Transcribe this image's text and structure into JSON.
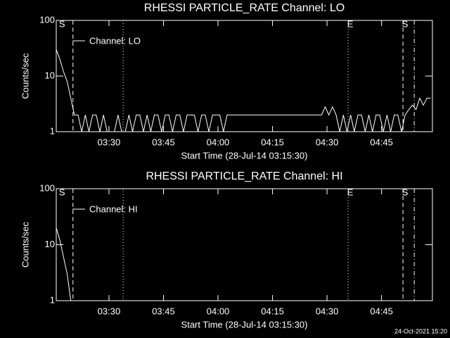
{
  "chart_data": [
    {
      "type": "line",
      "title": "RHESSI PARTICLE_RATE Channel: LO",
      "xlabel": "Start Time (28-Jul-14 03:15:30)",
      "ylabel": "Counts/sec",
      "log_y": true,
      "xlim": [
        0,
        103.5
      ],
      "ylim": [
        1,
        100
      ],
      "yticks": [
        1,
        10,
        100
      ],
      "xticks": [
        {
          "value": 14.5,
          "label": "03:30"
        },
        {
          "value": 29.5,
          "label": "03:45"
        },
        {
          "value": 44.5,
          "label": "04:00"
        },
        {
          "value": 59.5,
          "label": "04:15"
        },
        {
          "value": 74.5,
          "label": "04:30"
        },
        {
          "value": 89.5,
          "label": "04:45"
        }
      ],
      "series": [
        {
          "name": "Channel: LO",
          "color": "#ffffff",
          "x": [
            0,
            1,
            2,
            3,
            4,
            5,
            6,
            7,
            8,
            9,
            10,
            11,
            12,
            13,
            14,
            15,
            16,
            17,
            18,
            19,
            20,
            21,
            22,
            23,
            24,
            25,
            26,
            27,
            28,
            29,
            30,
            31,
            32,
            33,
            34,
            35,
            36,
            37,
            38,
            39,
            40,
            41,
            42,
            43,
            44,
            45,
            46,
            47,
            48,
            49,
            50,
            51,
            52,
            53,
            54,
            55,
            56,
            57,
            58,
            59,
            60,
            61,
            62,
            63,
            64,
            65,
            66,
            67,
            68,
            69,
            70,
            71,
            72,
            73,
            74,
            75,
            76,
            77,
            78,
            79,
            80,
            81,
            82,
            83,
            84,
            85,
            86,
            87,
            88,
            89,
            90,
            91,
            92,
            93,
            94,
            95,
            96,
            97,
            98,
            99,
            100,
            101,
            102,
            103
          ],
          "values": [
            30,
            20,
            12,
            8,
            4,
            2,
            2,
            1,
            2,
            1,
            2,
            2,
            1,
            2,
            1,
            1,
            1,
            2,
            1,
            1,
            2,
            1,
            2,
            2,
            1,
            2,
            1,
            2,
            2,
            1,
            2,
            2,
            1,
            2,
            2,
            1,
            2,
            2,
            2,
            1,
            2,
            2,
            1,
            2,
            2,
            2,
            1,
            2,
            2,
            2,
            2,
            2,
            2,
            2,
            2,
            2,
            2,
            2,
            2,
            2,
            2,
            2,
            2,
            2,
            2,
            2,
            2,
            2,
            2,
            2,
            2,
            2,
            2,
            2,
            2.8,
            2,
            2.8,
            2,
            1,
            2,
            1,
            2,
            1,
            2,
            2,
            1,
            2,
            1,
            2,
            2,
            1,
            2,
            1,
            2,
            2,
            1,
            2,
            2.5,
            3,
            2.5,
            4,
            3,
            4,
            4
          ]
        }
      ],
      "vlines": [
        {
          "x": 4.6,
          "style": "dashed"
        },
        {
          "x": 18.4,
          "style": "dotted"
        },
        {
          "x": 80.3,
          "style": "dotted"
        },
        {
          "x": 95.4,
          "style": "dashed"
        },
        {
          "x": 98.5,
          "style": "dashdot"
        }
      ],
      "annotations": [
        {
          "text": "S",
          "x": 1
        },
        {
          "text": "E",
          "x": 80.3
        },
        {
          "text": "S",
          "x": 95.4
        }
      ]
    },
    {
      "type": "line",
      "title": "RHESSI PARTICLE_RATE Channel: HI",
      "xlabel": "Start Time (28-Jul-14 03:15:30)",
      "ylabel": "Counts/sec",
      "log_y": true,
      "xlim": [
        0,
        103.5
      ],
      "ylim": [
        1,
        100
      ],
      "yticks": [
        1,
        10,
        100
      ],
      "xticks": [
        {
          "value": 14.5,
          "label": "03:30"
        },
        {
          "value": 29.5,
          "label": "03:45"
        },
        {
          "value": 44.5,
          "label": "04:00"
        },
        {
          "value": 59.5,
          "label": "04:15"
        },
        {
          "value": 74.5,
          "label": "04:30"
        },
        {
          "value": 89.5,
          "label": "04:45"
        }
      ],
      "series": [
        {
          "name": "Channel: HI",
          "color": "#ffffff",
          "x": [
            0,
            1,
            2,
            3,
            4
          ],
          "values": [
            20,
            12,
            6,
            3,
            1
          ]
        }
      ],
      "vlines": [
        {
          "x": 4.6,
          "style": "dashed"
        },
        {
          "x": 18.4,
          "style": "dotted"
        },
        {
          "x": 80.3,
          "style": "dotted"
        },
        {
          "x": 95.4,
          "style": "dashed"
        },
        {
          "x": 98.5,
          "style": "dashdot"
        }
      ],
      "annotations": [
        {
          "text": "S",
          "x": 1
        },
        {
          "text": "E",
          "x": 80.3
        },
        {
          "text": "S",
          "x": 95.4
        }
      ]
    }
  ],
  "footer": "24-Oct-2021 15:20"
}
